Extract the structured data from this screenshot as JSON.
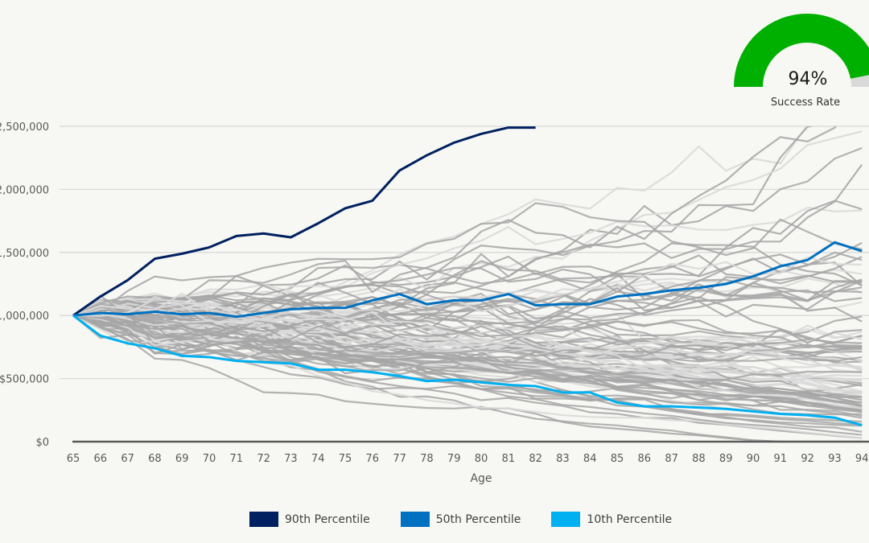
{
  "chart_data": {
    "type": "line",
    "title": "",
    "xlabel": "Age",
    "ylabel": "",
    "x": [
      65,
      66,
      67,
      68,
      69,
      70,
      71,
      72,
      73,
      74,
      75,
      76,
      77,
      78,
      79,
      80,
      81,
      82,
      83,
      84,
      85,
      86,
      87,
      88,
      89,
      90,
      91,
      92,
      93,
      94
    ],
    "ylim": [
      0,
      2500000
    ],
    "y_ticks": [
      0,
      500000,
      1000000,
      1500000,
      2000000,
      2500000
    ],
    "y_tick_labels": [
      "$0",
      "$500,000",
      "1,000,000",
      "1,500,000",
      "2,000,000",
      "2,500,000"
    ],
    "grid": true,
    "legend_position": "bottom",
    "series": [
      {
        "name": "90th Percentile",
        "color": "#002060",
        "values": [
          1000000,
          1150000,
          1280000,
          1450000,
          1490000,
          1540000,
          1630000,
          1650000,
          1620000,
          1730000,
          1850000,
          1910000,
          2150000,
          2270000,
          2370000,
          2440000,
          2490000,
          2490000,
          null,
          null,
          null,
          null,
          null,
          null,
          null,
          null,
          null,
          null,
          null,
          null
        ]
      },
      {
        "name": "50th Percentile",
        "color": "#0070c0",
        "values": [
          1000000,
          1020000,
          1010000,
          1030000,
          1010000,
          1020000,
          990000,
          1020000,
          1050000,
          1060000,
          1060000,
          1120000,
          1170000,
          1090000,
          1120000,
          1120000,
          1170000,
          1080000,
          1090000,
          1090000,
          1150000,
          1170000,
          1200000,
          1220000,
          1250000,
          1310000,
          1390000,
          1440000,
          1580000,
          1510000
        ]
      },
      {
        "name": "10th Percentile",
        "color": "#00b0f0",
        "values": [
          1000000,
          840000,
          780000,
          740000,
          680000,
          670000,
          640000,
          630000,
          620000,
          570000,
          570000,
          550000,
          520000,
          480000,
          490000,
          470000,
          450000,
          440000,
          390000,
          390000,
          310000,
          280000,
          280000,
          270000,
          260000,
          240000,
          220000,
          210000,
          190000,
          130000
        ]
      }
    ],
    "background_simulations": {
      "count": 100,
      "start_value": 1000000,
      "colors": [
        "#a6a6a6",
        "#d9d9d9"
      ],
      "description": "Monte Carlo simulated portfolio paths"
    }
  },
  "gauge": {
    "value_percent": 94,
    "value_label": "94%",
    "label": "Success Rate",
    "fill_color": "#00b000",
    "track_color": "#d9d9d9"
  },
  "legend": [
    {
      "label": "90th Percentile",
      "color": "#002060"
    },
    {
      "label": "50th Percentile",
      "color": "#0070c0"
    },
    {
      "label": "10th Percentile",
      "color": "#00b0f0"
    }
  ]
}
